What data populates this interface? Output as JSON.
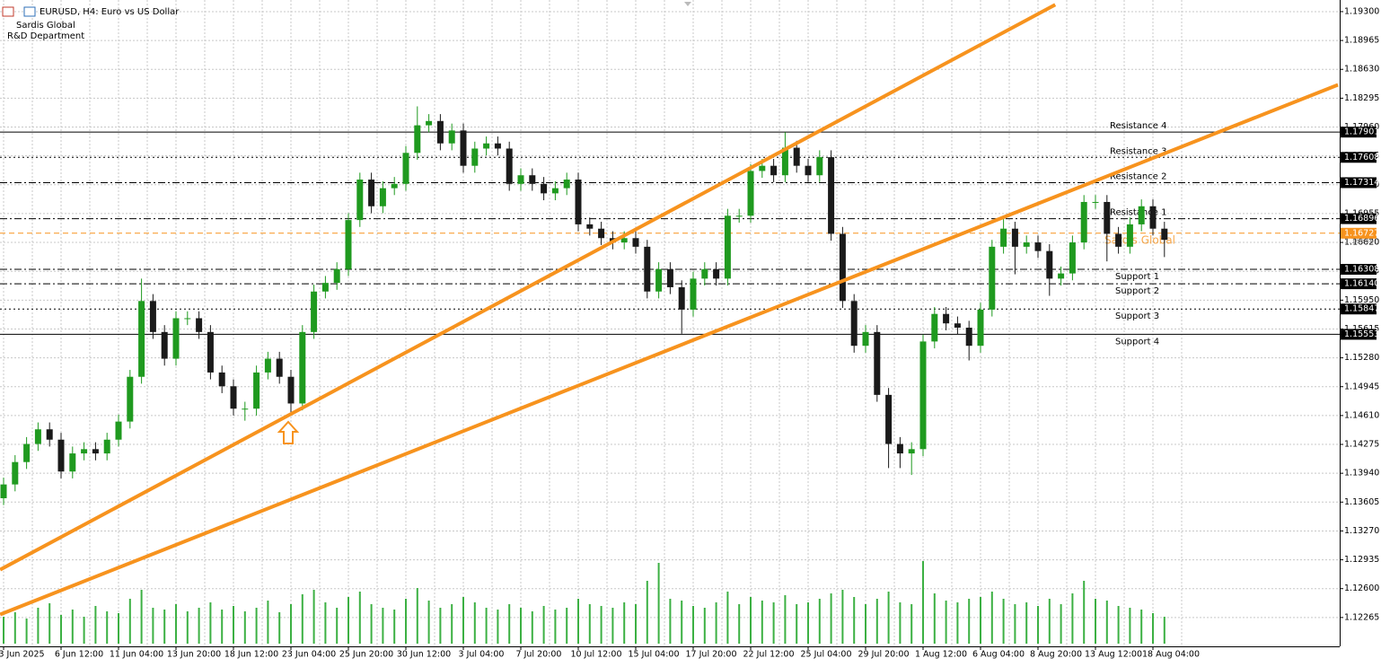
{
  "chart_data": {
    "type": "candlestick",
    "title": "EURUSD, H4:  Euro vs US Dollar",
    "subtitle": [
      "Sardis Global",
      "R&D Department"
    ],
    "watermark": "Sardis Global",
    "up_color": "#1f9a1f",
    "down_color": "#1a1a1a",
    "volume_color": "#3cb043",
    "line_color": "#f7931e",
    "ylim": [
      1.1193,
      1.19435
    ],
    "yticks": [
      {
        "value": 1.193,
        "label": "1.19300"
      },
      {
        "value": 1.18965,
        "label": "1.18965"
      },
      {
        "value": 1.1863,
        "label": "1.18630"
      },
      {
        "value": 1.18295,
        "label": "1.18295"
      },
      {
        "value": 1.1796,
        "label": "1.17960"
      },
      {
        "value": 1.17625,
        "label": "1.17625"
      },
      {
        "value": 1.1729,
        "label": "1.17290"
      },
      {
        "value": 1.16955,
        "label": "1.16955"
      },
      {
        "value": 1.1662,
        "label": "1.16620"
      },
      {
        "value": 1.16285,
        "label": "1.16285"
      },
      {
        "value": 1.1595,
        "label": "1.15950"
      },
      {
        "value": 1.15615,
        "label": "1.15615"
      },
      {
        "value": 1.1528,
        "label": "1.15280"
      },
      {
        "value": 1.14945,
        "label": "1.14945"
      },
      {
        "value": 1.1461,
        "label": "1.14610"
      },
      {
        "value": 1.14275,
        "label": "1.14275"
      },
      {
        "value": 1.1394,
        "label": "1.13940"
      },
      {
        "value": 1.13605,
        "label": "1.13605"
      },
      {
        "value": 1.1327,
        "label": "1.13270"
      },
      {
        "value": 1.12935,
        "label": "1.12935"
      },
      {
        "value": 1.126,
        "label": "1.12600"
      },
      {
        "value": 1.12265,
        "label": "1.12265"
      }
    ],
    "grid": true,
    "categories": [
      "3 Jun 2025",
      null,
      null,
      null,
      null,
      "6 Jun 12:00",
      null,
      null,
      null,
      null,
      "11 Jun 04:00",
      null,
      null,
      null,
      null,
      "13 Jun 20:00",
      null,
      null,
      null,
      null,
      "18 Jun 12:00",
      null,
      null,
      null,
      null,
      "23 Jun 04:00",
      null,
      null,
      null,
      null,
      "25 Jun 20:00",
      null,
      null,
      null,
      null,
      "30 Jun 12:00",
      null,
      null,
      null,
      null,
      "3 Jul 04:00",
      null,
      null,
      null,
      null,
      "7 Jul 20:00",
      null,
      null,
      null,
      null,
      "10 Jul 12:00",
      null,
      null,
      null,
      null,
      "15 Jul 04:00",
      null,
      null,
      null,
      null,
      "17 Jul 20:00",
      null,
      null,
      null,
      null,
      "22 Jul 12:00",
      null,
      null,
      null,
      null,
      "25 Jul 04:00",
      null,
      null,
      null,
      null,
      "29 Jul 20:00",
      null,
      null,
      null,
      null,
      "1 Aug 12:00",
      null,
      null,
      null,
      null,
      "6 Aug 04:00",
      null,
      null,
      null,
      null,
      "8 Aug 20:00",
      null,
      null,
      null,
      null,
      "13 Aug 12:00",
      null,
      null,
      null,
      null,
      "18 Aug 04:00",
      null
    ],
    "open": [
      1.1365,
      1.1381,
      1.1407,
      1.1428,
      1.1445,
      1.1433,
      1.1396,
      1.1417,
      1.1422,
      1.1417,
      1.1433,
      1.1454,
      1.1506,
      1.1594,
      1.1558,
      1.1527,
      1.1574,
      1.1574,
      1.1558,
      1.1511,
      1.1495,
      1.1469,
      1.1469,
      1.1511,
      1.1527,
      1.1506,
      1.1475,
      1.1558,
      1.1605,
      1.1615,
      1.1631,
      1.1688,
      1.1735,
      1.1704,
      1.1725,
      1.173,
      1.1766,
      1.1798,
      1.1803,
      1.1777,
      1.1792,
      1.1751,
      1.1771,
      1.1777,
      1.1771,
      1.173,
      1.174,
      1.173,
      1.1719,
      1.1725,
      1.1735,
      1.1683,
      1.1678,
      1.1667,
      1.1662,
      1.1667,
      1.1657,
      1.1605,
      1.1631,
      1.161,
      1.1584,
      1.162,
      1.1631,
      1.162,
      1.1693,
      1.1693,
      1.1745,
      1.1751,
      1.174,
      1.1772,
      1.1751,
      1.174,
      1.1761,
      1.1672,
      1.1594,
      1.1542,
      1.1558,
      1.1485,
      1.1428,
      1.1417,
      1.1422,
      1.1547,
      1.1579,
      1.1568,
      1.1563,
      1.1542,
      1.1584,
      1.1657,
      1.1678,
      1.1657,
      1.1662,
      1.1652,
      1.162,
      1.1626,
      1.1662,
      1.1709,
      1.1709,
      1.1672,
      1.1657,
      1.1683,
      1.1704,
      1.1678
    ],
    "high": [
      1.1389,
      1.1415,
      1.1436,
      1.1453,
      1.1453,
      1.1441,
      1.1425,
      1.143,
      1.143,
      1.1441,
      1.1462,
      1.1514,
      1.162,
      1.1602,
      1.1566,
      1.1582,
      1.1582,
      1.1582,
      1.1566,
      1.1519,
      1.1503,
      1.1477,
      1.1519,
      1.1535,
      1.1535,
      1.1514,
      1.1566,
      1.1613,
      1.1623,
      1.1639,
      1.1696,
      1.1743,
      1.1743,
      1.1733,
      1.1738,
      1.1774,
      1.182,
      1.1811,
      1.1811,
      1.18,
      1.18,
      1.1779,
      1.1785,
      1.1785,
      1.1779,
      1.1748,
      1.1748,
      1.1738,
      1.1733,
      1.1743,
      1.1743,
      1.1691,
      1.1686,
      1.1675,
      1.1675,
      1.1675,
      1.1665,
      1.1639,
      1.1639,
      1.1618,
      1.1628,
      1.1639,
      1.1639,
      1.1701,
      1.1701,
      1.1753,
      1.1759,
      1.1759,
      1.179,
      1.178,
      1.1759,
      1.1769,
      1.1769,
      1.168,
      1.1602,
      1.1566,
      1.1566,
      1.1493,
      1.1436,
      1.143,
      1.1555,
      1.1587,
      1.1587,
      1.1576,
      1.1571,
      1.1592,
      1.1665,
      1.169,
      1.1686,
      1.167,
      1.167,
      1.166,
      1.1634,
      1.167,
      1.1717,
      1.1717,
      1.1717,
      1.168,
      1.1691,
      1.1712,
      1.1712,
      1.1686
    ],
    "low": [
      1.1357,
      1.1373,
      1.1399,
      1.142,
      1.1425,
      1.1388,
      1.1388,
      1.1409,
      1.1409,
      1.1409,
      1.1425,
      1.1446,
      1.1498,
      1.155,
      1.1519,
      1.1519,
      1.1566,
      1.155,
      1.1503,
      1.1487,
      1.1461,
      1.1455,
      1.1461,
      1.1503,
      1.1498,
      1.1462,
      1.1467,
      1.155,
      1.1597,
      1.1607,
      1.1623,
      1.168,
      1.1696,
      1.1696,
      1.1717,
      1.1722,
      1.1758,
      1.179,
      1.1769,
      1.1769,
      1.1743,
      1.1743,
      1.1763,
      1.1763,
      1.1722,
      1.1722,
      1.1722,
      1.1711,
      1.1711,
      1.1717,
      1.1675,
      1.167,
      1.1659,
      1.1654,
      1.1654,
      1.1649,
      1.1597,
      1.1597,
      1.1602,
      1.1556,
      1.1576,
      1.1612,
      1.1612,
      1.1612,
      1.1685,
      1.1685,
      1.1737,
      1.1732,
      1.1732,
      1.1743,
      1.1732,
      1.1732,
      1.1664,
      1.1586,
      1.1534,
      1.1534,
      1.1477,
      1.14,
      1.14,
      1.1392,
      1.1414,
      1.1539,
      1.156,
      1.1555,
      1.1525,
      1.1534,
      1.1576,
      1.1649,
      1.1625,
      1.1649,
      1.1644,
      1.16,
      1.1612,
      1.1618,
      1.1654,
      1.1701,
      1.164,
      1.1649,
      1.1649,
      1.1675,
      1.167,
      1.1645
    ],
    "close": [
      1.1381,
      1.1407,
      1.1428,
      1.1445,
      1.1433,
      1.1396,
      1.1417,
      1.1422,
      1.1417,
      1.1433,
      1.1454,
      1.1506,
      1.1594,
      1.1558,
      1.1527,
      1.1574,
      1.1574,
      1.1558,
      1.1511,
      1.1495,
      1.1469,
      1.1469,
      1.1511,
      1.1527,
      1.1506,
      1.1475,
      1.1558,
      1.1605,
      1.1615,
      1.1631,
      1.1688,
      1.1735,
      1.1704,
      1.1725,
      1.173,
      1.1766,
      1.1798,
      1.1803,
      1.1777,
      1.1792,
      1.1751,
      1.1771,
      1.1777,
      1.1771,
      1.173,
      1.174,
      1.173,
      1.1719,
      1.1725,
      1.1735,
      1.1683,
      1.1678,
      1.1667,
      1.1662,
      1.1667,
      1.1657,
      1.1605,
      1.1631,
      1.161,
      1.1584,
      1.162,
      1.1631,
      1.162,
      1.1693,
      1.1693,
      1.1745,
      1.1751,
      1.174,
      1.1772,
      1.1751,
      1.174,
      1.1761,
      1.1672,
      1.1594,
      1.1542,
      1.1558,
      1.1485,
      1.1428,
      1.1417,
      1.1422,
      1.1547,
      1.1579,
      1.1568,
      1.1563,
      1.1542,
      1.1584,
      1.1657,
      1.1678,
      1.1657,
      1.1662,
      1.1652,
      1.162,
      1.1626,
      1.1662,
      1.1709,
      1.1709,
      1.1672,
      1.1657,
      1.1683,
      1.1704,
      1.1678,
      1.1665
    ],
    "volume_lim": [
      0,
      100
    ],
    "volume": [
      30,
      35,
      28,
      40,
      45,
      32,
      38,
      30,
      42,
      36,
      34,
      50,
      60,
      40,
      38,
      44,
      36,
      40,
      46,
      38,
      42,
      36,
      40,
      48,
      35,
      44,
      55,
      60,
      46,
      40,
      52,
      58,
      44,
      40,
      38,
      50,
      62,
      48,
      40,
      44,
      52,
      46,
      40,
      38,
      44,
      40,
      36,
      42,
      38,
      40,
      50,
      44,
      42,
      40,
      46,
      44,
      70,
      90,
      50,
      48,
      42,
      40,
      46,
      58,
      44,
      52,
      48,
      46,
      54,
      44,
      46,
      50,
      56,
      60,
      52,
      44,
      50,
      58,
      46,
      44,
      92,
      56,
      48,
      46,
      50,
      52,
      58,
      50,
      44,
      46,
      42,
      50,
      44,
      56,
      70,
      50,
      48,
      42,
      40,
      38,
      34,
      30
    ],
    "trendlines": [
      {
        "x": [
          -0.3,
          91.5
        ],
        "y": [
          1.1282,
          1.1938
        ]
      },
      {
        "x": [
          -0.3,
          116.1
        ],
        "y": [
          1.123,
          1.1845
        ]
      }
    ],
    "levels": [
      {
        "name": "Resistance 4",
        "value": 1.17901,
        "style": "solid"
      },
      {
        "name": "Resistance 3",
        "value": 1.17608,
        "style": "dot"
      },
      {
        "name": "Resistance 2",
        "value": 1.17314,
        "style": "dashdot"
      },
      {
        "name": "Resistance 1",
        "value": 1.16896,
        "style": "dashdot"
      },
      {
        "name": "Support 1",
        "value": 1.16308,
        "style": "dashdot"
      },
      {
        "name": "Support 2",
        "value": {
          "value": 1.1614,
          "label": "1.16140"
        },
        "style": "dashdot"
      },
      {
        "name": "Support 3",
        "value": 1.15847,
        "style": "dot"
      },
      {
        "name": "Support 4",
        "value": 1.15553,
        "style": "solid"
      }
    ],
    "price": 1.16727,
    "bid": 1.16646
  }
}
